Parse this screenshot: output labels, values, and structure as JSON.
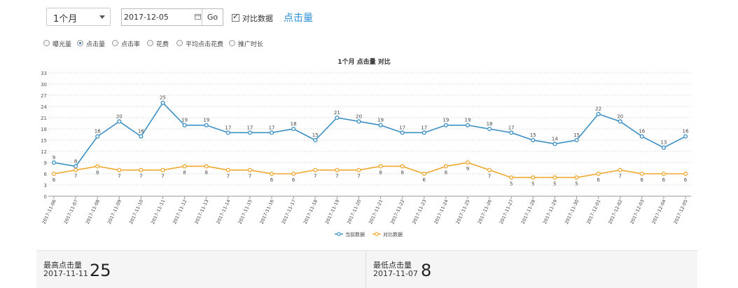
{
  "toolbar": {
    "period": "1个月",
    "date_value": "2017-12-05",
    "go_label": "Go",
    "compare_label": "对比数据",
    "metric_link": "点击量"
  },
  "metrics": [
    {
      "label": "曝光量",
      "selected": false
    },
    {
      "label": "点击量",
      "selected": true
    },
    {
      "label": "点击率",
      "selected": false
    },
    {
      "label": "花费",
      "selected": false
    },
    {
      "label": "平均点击花费",
      "selected": false
    },
    {
      "label": "推广时长",
      "selected": false
    }
  ],
  "chart_data": {
    "type": "line",
    "title": "1个月  点击量  对比",
    "x": [
      "2017-11-06",
      "2017-11-07",
      "2017-11-08",
      "2017-11-09",
      "2017-11-10",
      "2017-11-11",
      "2017-11-12",
      "2017-11-13",
      "2017-11-14",
      "2017-11-15",
      "2017-11-16",
      "2017-11-17",
      "2017-11-18",
      "2017-11-19",
      "2017-11-20",
      "2017-11-21",
      "2017-11-22",
      "2017-11-23",
      "2017-11-24",
      "2017-11-25",
      "2017-11-26",
      "2017-11-27",
      "2017-11-28",
      "2017-11-29",
      "2017-11-30",
      "2017-12-01",
      "2017-12-02",
      "2017-12-03",
      "2017-12-04",
      "2017-12-05"
    ],
    "series": [
      {
        "name": "当前数据",
        "color": "#3a8fc4",
        "values": [
          9,
          8,
          16,
          20,
          16,
          25,
          19,
          19,
          17,
          17,
          17,
          18,
          15,
          21,
          20,
          19,
          17,
          17,
          19,
          19,
          18,
          17,
          15,
          14,
          15,
          22,
          20,
          16,
          13,
          16
        ]
      },
      {
        "name": "对比数据",
        "color": "#f0a830",
        "values": [
          6,
          7,
          8,
          7,
          7,
          7,
          8,
          8,
          7,
          7,
          6,
          6,
          7,
          7,
          7,
          8,
          8,
          6,
          8,
          9,
          7,
          5,
          5,
          5,
          5,
          6,
          7,
          6,
          6,
          6
        ]
      }
    ],
    "ylim": [
      0,
      33
    ],
    "yticks": [
      0,
      3,
      6,
      9,
      12,
      15,
      18,
      21,
      24,
      27,
      30,
      33
    ],
    "grid": true,
    "legend": "bottom-center"
  },
  "stats": {
    "max_title": "最高点击量",
    "max_date": "2017-11-11",
    "max_value": "25",
    "min_title": "最低点击量",
    "min_date": "2017-11-07",
    "min_value": "8"
  }
}
